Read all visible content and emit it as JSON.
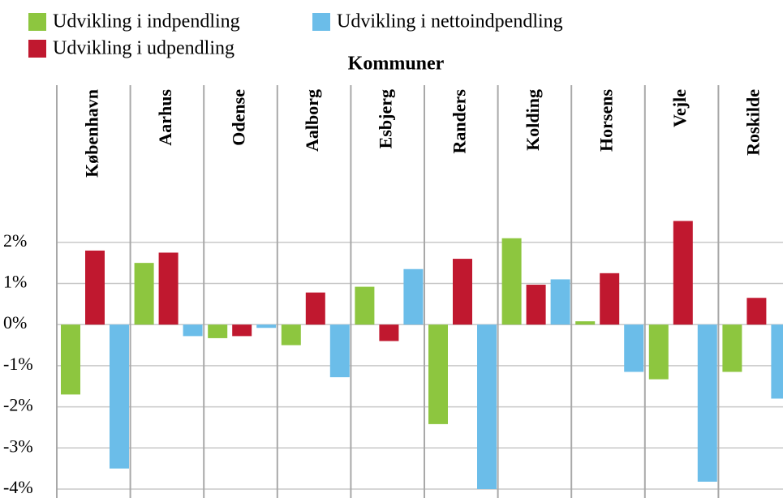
{
  "chart_data": {
    "type": "bar",
    "title": "Kommuner",
    "categories": [
      "København",
      "Aarhus",
      "Odense",
      "Aalborg",
      "Esbjerg",
      "Randers",
      "Kolding",
      "Horsens",
      "Vejle",
      "Roskilde"
    ],
    "series": [
      {
        "name": "Udvikling i indpendling",
        "color": "#8dc63f",
        "values": [
          -1.7,
          1.5,
          -0.33,
          -0.5,
          0.92,
          -2.42,
          2.1,
          0.08,
          -1.33,
          -1.15
        ]
      },
      {
        "name": "Udvikling i udpendling",
        "color": "#c0182f",
        "values": [
          1.8,
          1.75,
          -0.28,
          0.78,
          -0.4,
          1.6,
          0.97,
          1.25,
          2.52,
          0.65
        ]
      },
      {
        "name": "Udvikling i nettoindpendling",
        "color": "#6bbde9",
        "values": [
          -3.5,
          -0.28,
          -0.08,
          -1.28,
          1.35,
          -4.0,
          1.1,
          -1.15,
          -3.82,
          -1.8
        ]
      }
    ],
    "ylim": [
      -4,
      2.8
    ],
    "yticks": [
      {
        "value": -4,
        "label": "-4%"
      },
      {
        "value": -3,
        "label": "-3%"
      },
      {
        "value": -2,
        "label": "-2%"
      },
      {
        "value": -1,
        "label": "-1%"
      },
      {
        "value": 0,
        "label": "0%"
      },
      {
        "value": 1,
        "label": "1%"
      },
      {
        "value": 2,
        "label": "2%"
      }
    ],
    "grid": true
  }
}
